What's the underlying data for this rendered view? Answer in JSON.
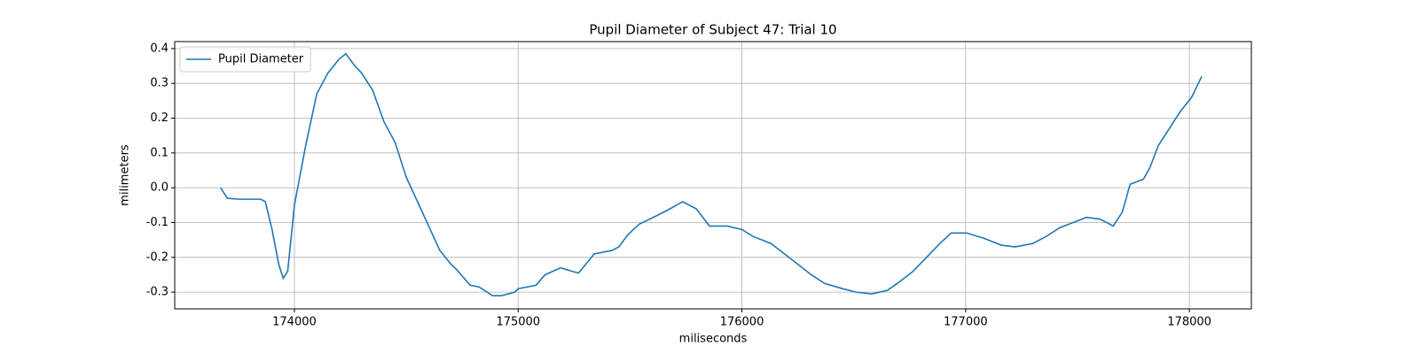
{
  "chart_data": {
    "type": "line",
    "title": "Pupil Diameter of Subject 47: Trial 10",
    "x_label": "miliseconds",
    "y_label": "milimeters",
    "xlim": [
      173465,
      178277
    ],
    "ylim": [
      -0.348,
      0.42
    ],
    "xticks": [
      174000,
      175000,
      176000,
      177000,
      178000
    ],
    "yticks": [
      -0.3,
      -0.2,
      -0.1,
      0.0,
      0.1,
      0.2,
      0.3,
      0.4
    ],
    "grid": true,
    "legend": "upper left",
    "x": [
      173670,
      173700,
      173750,
      173800,
      173850,
      173870,
      173900,
      173930,
      173950,
      173970,
      174000,
      174050,
      174100,
      174150,
      174200,
      174230,
      174270,
      174300,
      174350,
      174400,
      174450,
      174500,
      174550,
      174600,
      174650,
      174700,
      174725,
      174785,
      174825,
      174885,
      174925,
      174985,
      175000,
      175080,
      175120,
      175190,
      175240,
      175270,
      175340,
      175420,
      175450,
      175490,
      175540,
      175620,
      175680,
      175735,
      175795,
      175855,
      175935,
      176000,
      176050,
      176130,
      176190,
      176250,
      176310,
      176370,
      176450,
      176510,
      176580,
      176650,
      176705,
      176765,
      176825,
      176885,
      176935,
      177005,
      177080,
      177160,
      177220,
      177300,
      177360,
      177420,
      177480,
      177540,
      177600,
      177660,
      177700,
      177735,
      177795,
      177825,
      177860,
      177890,
      177960,
      178010,
      178055
    ],
    "series": [
      {
        "name": "Pupil Diameter",
        "color": "#1f77b4",
        "values": [
          0.0,
          -0.03,
          -0.033,
          -0.033,
          -0.033,
          -0.04,
          -0.12,
          -0.22,
          -0.26,
          -0.24,
          -0.05,
          0.12,
          0.27,
          0.33,
          0.37,
          0.385,
          0.35,
          0.33,
          0.28,
          0.19,
          0.13,
          0.03,
          -0.04,
          -0.11,
          -0.18,
          -0.22,
          -0.235,
          -0.28,
          -0.285,
          -0.31,
          -0.31,
          -0.3,
          -0.29,
          -0.28,
          -0.25,
          -0.23,
          -0.24,
          -0.245,
          -0.19,
          -0.18,
          -0.17,
          -0.135,
          -0.105,
          -0.08,
          -0.06,
          -0.04,
          -0.06,
          -0.11,
          -0.11,
          -0.12,
          -0.14,
          -0.16,
          -0.19,
          -0.22,
          -0.25,
          -0.275,
          -0.29,
          -0.3,
          -0.305,
          -0.295,
          -0.27,
          -0.24,
          -0.2,
          -0.16,
          -0.13,
          -0.13,
          -0.145,
          -0.165,
          -0.17,
          -0.16,
          -0.14,
          -0.115,
          -0.1,
          -0.085,
          -0.09,
          -0.11,
          -0.07,
          0.01,
          0.025,
          0.06,
          0.12,
          0.15,
          0.22,
          0.26,
          0.32
        ]
      }
    ]
  }
}
